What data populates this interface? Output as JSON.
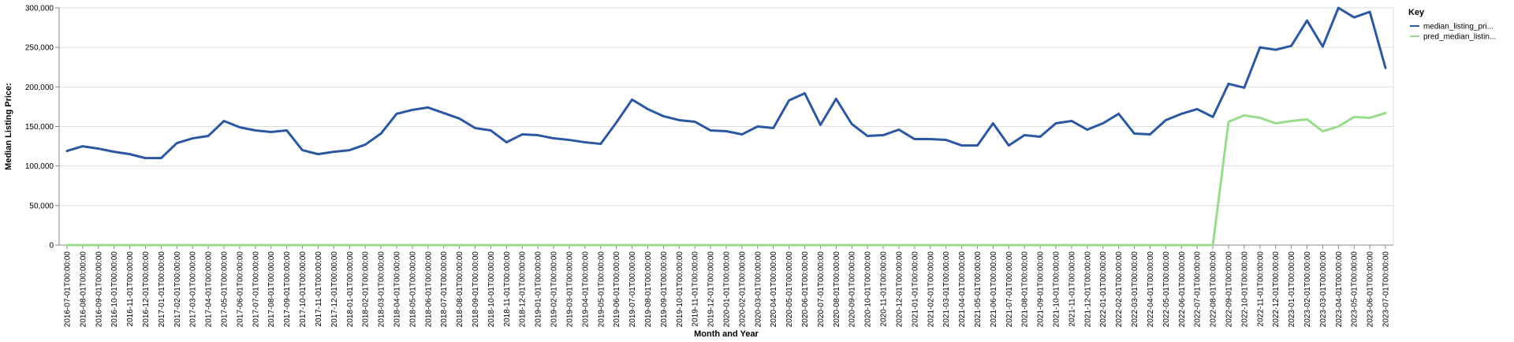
{
  "chart_data": {
    "type": "line",
    "xlabel": "Month and Year",
    "ylabel": "Median Listing Price:",
    "ylim": [
      0,
      300000
    ],
    "yticks": [
      "0",
      "50,000",
      "100,000",
      "150,000",
      "200,000",
      "250,000",
      "300,000"
    ],
    "grid": true,
    "legend_placement": "top-right",
    "legend": {
      "title": "Key",
      "entries": [
        "median_listing_pri...",
        "pred_median_listin..."
      ]
    },
    "x": [
      "2016-07-01T00:00:00",
      "2016-08-01T00:00:00",
      "2016-09-01T00:00:00",
      "2016-10-01T00:00:00",
      "2016-11-01T00:00:00",
      "2016-12-01T00:00:00",
      "2017-01-01T00:00:00",
      "2017-02-01T00:00:00",
      "2017-03-01T00:00:00",
      "2017-04-01T00:00:00",
      "2017-05-01T00:00:00",
      "2017-06-01T00:00:00",
      "2017-07-01T00:00:00",
      "2017-08-01T00:00:00",
      "2017-09-01T00:00:00",
      "2017-10-01T00:00:00",
      "2017-11-01T00:00:00",
      "2017-12-01T00:00:00",
      "2018-01-01T00:00:00",
      "2018-02-01T00:00:00",
      "2018-03-01T00:00:00",
      "2018-04-01T00:00:00",
      "2018-05-01T00:00:00",
      "2018-06-01T00:00:00",
      "2018-07-01T00:00:00",
      "2018-08-01T00:00:00",
      "2018-09-01T00:00:00",
      "2018-10-01T00:00:00",
      "2018-11-01T00:00:00",
      "2018-12-01T00:00:00",
      "2019-01-01T00:00:00",
      "2019-02-01T00:00:00",
      "2019-03-01T00:00:00",
      "2019-04-01T00:00:00",
      "2019-05-01T00:00:00",
      "2019-06-01T00:00:00",
      "2019-07-01T00:00:00",
      "2019-08-01T00:00:00",
      "2019-09-01T00:00:00",
      "2019-10-01T00:00:00",
      "2019-11-01T00:00:00",
      "2019-12-01T00:00:00",
      "2020-01-01T00:00:00",
      "2020-02-01T00:00:00",
      "2020-03-01T00:00:00",
      "2020-04-01T00:00:00",
      "2020-05-01T00:00:00",
      "2020-06-01T00:00:00",
      "2020-07-01T00:00:00",
      "2020-08-01T00:00:00",
      "2020-09-01T00:00:00",
      "2020-10-01T00:00:00",
      "2020-11-01T00:00:00",
      "2020-12-01T00:00:00",
      "2021-01-01T00:00:00",
      "2021-02-01T00:00:00",
      "2021-03-01T00:00:00",
      "2021-04-01T00:00:00",
      "2021-05-01T00:00:00",
      "2021-06-01T00:00:00",
      "2021-07-01T00:00:00",
      "2021-08-01T00:00:00",
      "2021-09-01T00:00:00",
      "2021-10-01T00:00:00",
      "2021-11-01T00:00:00",
      "2021-12-01T00:00:00",
      "2022-01-01T00:00:00",
      "2022-02-01T00:00:00",
      "2022-03-01T00:00:00",
      "2022-04-01T00:00:00",
      "2022-05-01T00:00:00",
      "2022-06-01T00:00:00",
      "2022-07-01T00:00:00",
      "2022-08-01T00:00:00",
      "2022-09-01T00:00:00",
      "2022-10-01T00:00:00",
      "2022-11-01T00:00:00",
      "2022-12-01T00:00:00",
      "2023-01-01T00:00:00",
      "2023-02-01T00:00:00",
      "2023-03-01T00:00:00",
      "2023-04-01T00:00:00",
      "2023-05-01T00:00:00",
      "2023-06-01T00:00:00",
      "2023-07-01T00:00:00"
    ],
    "series": [
      {
        "name": "median_listing_pri...",
        "color": "#2b58a0",
        "values": [
          119000,
          125000,
          122000,
          118000,
          115000,
          110000,
          110000,
          129000,
          135000,
          138000,
          157000,
          149000,
          145000,
          143000,
          145000,
          120000,
          115000,
          118000,
          120000,
          127000,
          141000,
          166000,
          171000,
          174000,
          167000,
          160000,
          148000,
          145000,
          130000,
          140000,
          139000,
          135000,
          133000,
          130000,
          128000,
          155000,
          184000,
          172000,
          163000,
          158000,
          156000,
          145000,
          144000,
          140000,
          150000,
          148000,
          183000,
          192000,
          152000,
          185000,
          153000,
          138000,
          139000,
          146000,
          134000,
          134000,
          133000,
          126000,
          126000,
          154000,
          126000,
          139000,
          137000,
          154000,
          157000,
          146000,
          154000,
          166000,
          141000,
          140000,
          158000,
          166000,
          172000,
          162000,
          204000,
          199000,
          250000,
          247000,
          252000,
          284000,
          251000,
          300000,
          288000,
          295000,
          224000
        ]
      },
      {
        "name": "pred_median_listin...",
        "color": "#98dc8c",
        "values": [
          0,
          0,
          0,
          0,
          0,
          0,
          0,
          0,
          0,
          0,
          0,
          0,
          0,
          0,
          0,
          0,
          0,
          0,
          0,
          0,
          0,
          0,
          0,
          0,
          0,
          0,
          0,
          0,
          0,
          0,
          0,
          0,
          0,
          0,
          0,
          0,
          0,
          0,
          0,
          0,
          0,
          0,
          0,
          0,
          0,
          0,
          0,
          0,
          0,
          0,
          0,
          0,
          0,
          0,
          0,
          0,
          0,
          0,
          0,
          0,
          0,
          0,
          0,
          0,
          0,
          0,
          0,
          0,
          0,
          0,
          0,
          0,
          0,
          0,
          156000,
          164000,
          161000,
          154000,
          157000,
          159000,
          144000,
          150000,
          162000,
          161000,
          167000
        ]
      }
    ]
  }
}
